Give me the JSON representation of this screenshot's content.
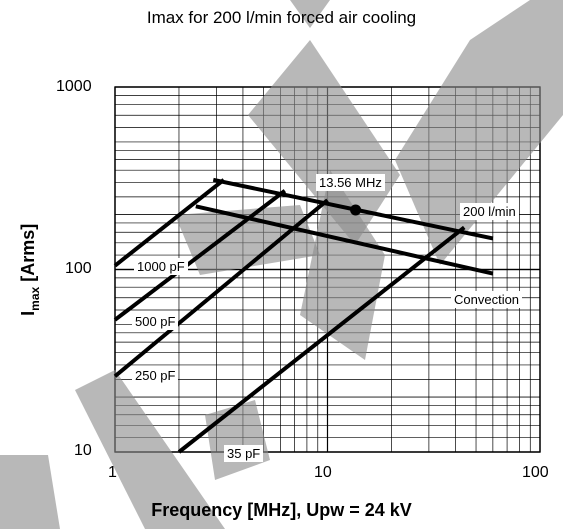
{
  "chart_data": {
    "type": "line",
    "title": "Imax for 200 l/min forced air cooling",
    "xlabel": "Frequency [MHz], Upw = 24 kV",
    "ylabel_main": "I",
    "ylabel_sub": "max",
    "ylabel_unit": " [Arms]",
    "x_scale": "log",
    "y_scale": "log",
    "xlim": [
      1,
      100
    ],
    "ylim": [
      10,
      1000
    ],
    "x_ticks": [
      "1",
      "10",
      "100"
    ],
    "y_ticks": [
      "1000",
      "100",
      "10"
    ],
    "grid": true,
    "series": [
      {
        "name": "200 l/min",
        "x": [
          2.9,
          60
        ],
        "y": [
          310,
          148
        ]
      },
      {
        "name": "Convection",
        "x": [
          2.4,
          60
        ],
        "y": [
          222,
          95
        ]
      },
      {
        "name": "1000 pF",
        "x": [
          1,
          3.25
        ],
        "y": [
          105,
          310
        ]
      },
      {
        "name": "500 pF",
        "x": [
          1,
          6.3
        ],
        "y": [
          53,
          270
        ]
      },
      {
        "name": "250 pF",
        "x": [
          1,
          10
        ],
        "y": [
          26,
          240
        ]
      },
      {
        "name": "35 pF",
        "x": [
          2,
          44
        ],
        "y": [
          10,
          170
        ]
      }
    ],
    "point_annotations": [
      {
        "label": "13.56 MHz",
        "x": 13.56,
        "y": 212
      }
    ]
  }
}
